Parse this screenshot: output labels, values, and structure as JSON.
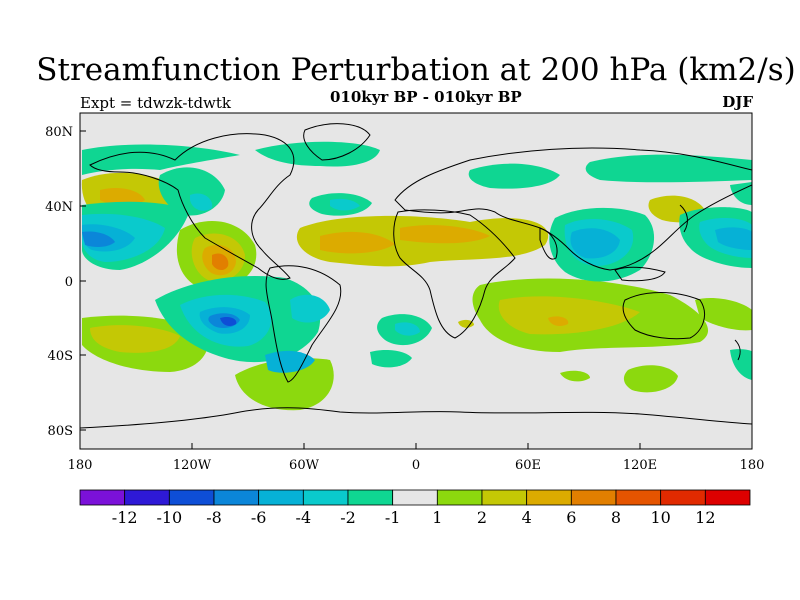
{
  "title": "Streamfunction Perturbation at 200 hPa (km2/s)",
  "subtitle": "010kyr BP - 010kyr BP",
  "experiment": "Expt = tdwzk-tdwtk",
  "season": "DJF",
  "map": {
    "lon_ticks": [
      "180",
      "120W",
      "60W",
      "0",
      "60E",
      "120E",
      "180"
    ],
    "lat_ticks": [
      "80N",
      "40N",
      "0",
      "40S",
      "80S"
    ]
  },
  "colorbar": {
    "labels": [
      "-12",
      "-10",
      "-8",
      "-6",
      "-4",
      "-2",
      "-1",
      "1",
      "2",
      "4",
      "6",
      "8",
      "10",
      "12"
    ],
    "colors": [
      "#7b11d9",
      "#2e19d6",
      "#0e4ed6",
      "#0b86d9",
      "#06b1d6",
      "#0acacc",
      "#0fd692",
      "#e6e6e6",
      "#8cd90e",
      "#c4c805",
      "#dcab00",
      "#e27f00",
      "#e55400",
      "#e12a00",
      "#dd0000"
    ]
  },
  "colors": {
    "background": "#e6e6e6",
    "coast": "#000000"
  }
}
